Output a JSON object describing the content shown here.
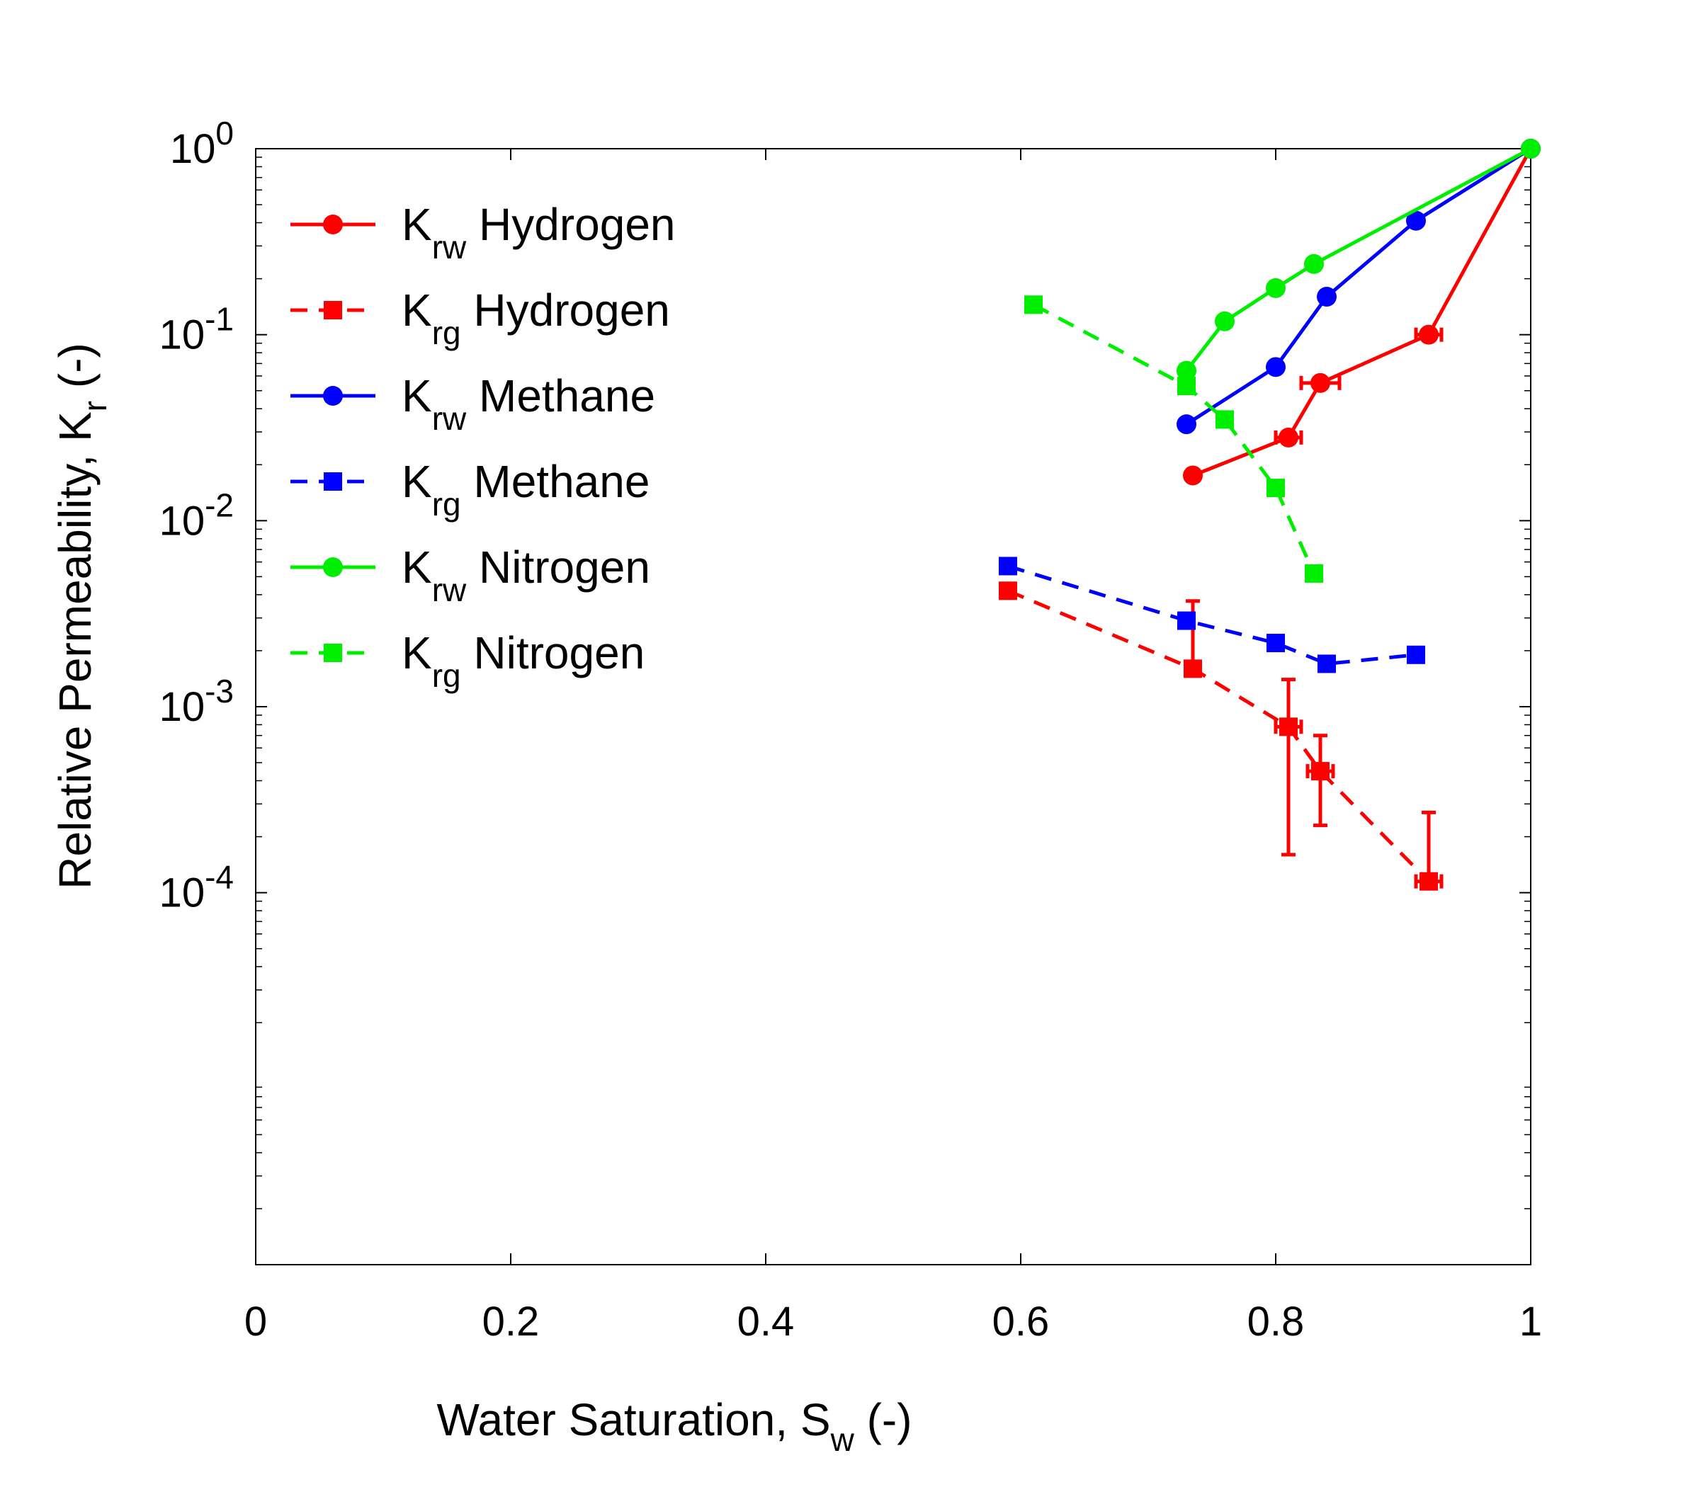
{
  "chart_data": {
    "type": "line",
    "xlabel": "Water Saturation, S",
    "xlabel_sub": "w",
    "xlabel_suffix": " (-)",
    "ylabel": "Relative Permeability, K",
    "ylabel_sub": "r",
    "ylabel_suffix": " (-)",
    "xlim": [
      0,
      1
    ],
    "ylim": [
      1e-06,
      1
    ],
    "yscale": "log",
    "x_ticks": [
      0,
      0.2,
      0.4,
      0.6,
      0.8,
      1
    ],
    "x_tick_labels": [
      "0",
      "0.2",
      "0.4",
      "0.6",
      "0.8",
      "1"
    ],
    "y_ticks": [
      1,
      0.1,
      0.01,
      0.001,
      0.0001
    ],
    "y_tick_base": "10",
    "y_tick_exps": [
      "0",
      "-1",
      "-2",
      "-3",
      "-4"
    ],
    "legend_position": "top-left",
    "series": [
      {
        "name": "Hydrogen",
        "k": "K",
        "sub": "rw",
        "color": "#ff0000",
        "dash": false,
        "marker": "circle",
        "x": [
          0.735,
          0.81,
          0.835,
          0.92,
          1.0
        ],
        "y": [
          0.0175,
          0.028,
          0.055,
          0.1,
          1.0
        ],
        "xerr": [
          0,
          0.01,
          0.015,
          0.01,
          0
        ],
        "yerr_low": [
          null,
          null,
          null,
          null,
          null
        ],
        "yerr_high": [
          null,
          null,
          null,
          null,
          null
        ]
      },
      {
        "name": "Hydrogen",
        "k": "K",
        "sub": "rg",
        "color": "#ff0000",
        "dash": true,
        "marker": "square",
        "x": [
          0.59,
          0.735,
          0.81,
          0.835,
          0.92
        ],
        "y": [
          0.0042,
          0.0016,
          0.00078,
          0.00045,
          0.000115
        ],
        "xerr": [
          0,
          0,
          0.01,
          0.01,
          0.01
        ],
        "yerr_low": [
          null,
          0.0016,
          0.00016,
          0.00023,
          0.000115
        ],
        "yerr_high": [
          null,
          0.0037,
          0.0014,
          0.0007,
          0.00027
        ]
      },
      {
        "name": "Methane",
        "k": "K",
        "sub": "rw",
        "color": "#0000ff",
        "dash": false,
        "marker": "circle",
        "x": [
          0.73,
          0.8,
          0.84,
          0.91,
          1.0
        ],
        "y": [
          0.033,
          0.067,
          0.16,
          0.41,
          1.0
        ]
      },
      {
        "name": "Methane",
        "k": "K",
        "sub": "rg",
        "color": "#0000ff",
        "dash": true,
        "marker": "square",
        "x": [
          0.59,
          0.73,
          0.8,
          0.84,
          0.91
        ],
        "y": [
          0.0057,
          0.0029,
          0.0022,
          0.0017,
          0.0019
        ]
      },
      {
        "name": "Nitrogen",
        "k": "K",
        "sub": "rw",
        "color": "#00ee00",
        "dash": false,
        "marker": "circle",
        "x": [
          0.73,
          0.76,
          0.8,
          0.83,
          1.0
        ],
        "y": [
          0.064,
          0.118,
          0.178,
          0.24,
          1.0
        ]
      },
      {
        "name": "Nitrogen",
        "k": "K",
        "sub": "rg",
        "color": "#00ee00",
        "dash": true,
        "marker": "square",
        "x": [
          0.61,
          0.73,
          0.76,
          0.8,
          0.83
        ],
        "y": [
          0.145,
          0.053,
          0.035,
          0.015,
          0.0052
        ]
      }
    ]
  }
}
